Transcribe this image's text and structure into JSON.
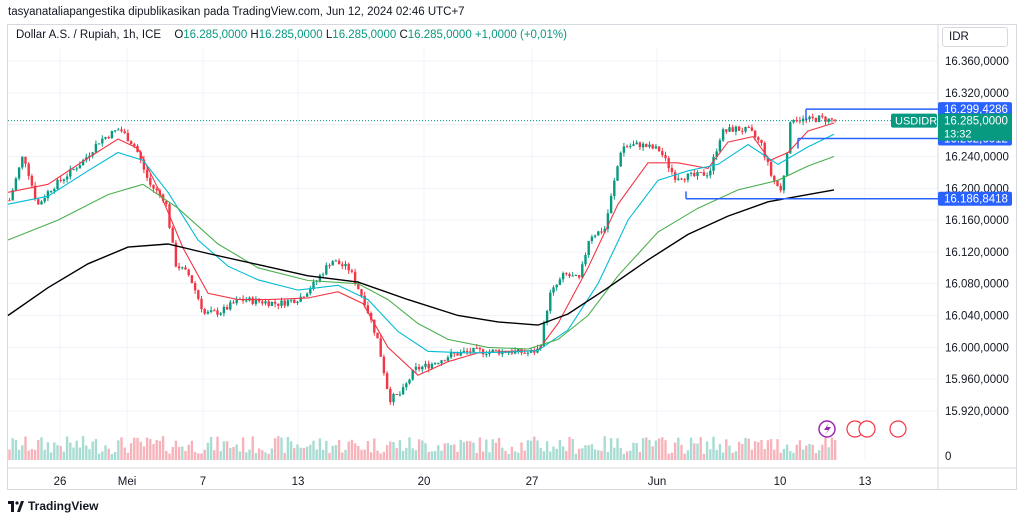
{
  "header": {
    "attribution": "tasyanataliapangestika dipublikasikan pada TradingView.com, Jun 12, 2024 02:46 UTC+7"
  },
  "legend": {
    "symbol": "Dollar A.S. / Rupiah, 1h, ICE",
    "open_label": "O",
    "open": "16.285,0000",
    "high_label": "H",
    "high": "16.285,0000",
    "low_label": "L",
    "low": "16.285,0000",
    "close_label": "C",
    "close": "16.285,0000",
    "change": "+1,0000 (+0,01%)"
  },
  "currency_button": "IDR",
  "footer": {
    "brand": "TradingView"
  },
  "chart_data": {
    "type": "candlestick",
    "y_axis_ticks": [
      "16.360,0000",
      "16.320,0000",
      "16.280,0000",
      "16.240,0000",
      "16.200,0000",
      "16.160,0000",
      "16.120,0000",
      "16.080,0000",
      "16.040,0000",
      "16.000,0000",
      "15.960,0000",
      "15.920,0000"
    ],
    "y_tick_values": [
      16360,
      16320,
      16280,
      16240,
      16200,
      16160,
      16120,
      16080,
      16040,
      16000,
      15960,
      15920
    ],
    "ylim": [
      15902,
      16384
    ],
    "x_axis_labels": [
      "26",
      "Mei",
      "7",
      "13",
      "20",
      "27",
      "Jun",
      "10",
      "13"
    ],
    "volume_axis_label": "0",
    "price_labels": [
      {
        "text": "16.299,4286",
        "value": 16299.4286,
        "color": "#2962ff"
      },
      {
        "text": "16.262,6012",
        "value": 16262.6012,
        "color": "#2962ff"
      },
      {
        "text": "16.186,8418",
        "value": 16186.8418,
        "color": "#2962ff"
      }
    ],
    "last_price": {
      "symbol": "USDIDR",
      "text": "16.285,0000",
      "countdown": "13:32",
      "value": 16285,
      "color": "#089981"
    },
    "colors": {
      "up": "#089981",
      "down": "#f23645",
      "ma_fast": "#f23645",
      "ma_mid": "#00bcd4",
      "ma_slow": "#4caf50",
      "ma_long": "#000000",
      "level": "#2962ff"
    },
    "price_path": [
      {
        "x": 0,
        "p": 16185
      },
      {
        "x": 14,
        "p": 16243
      },
      {
        "x": 28,
        "p": 16178
      },
      {
        "x": 40,
        "p": 16198
      },
      {
        "x": 56,
        "p": 16215
      },
      {
        "x": 74,
        "p": 16235
      },
      {
        "x": 90,
        "p": 16260
      },
      {
        "x": 110,
        "p": 16275
      },
      {
        "x": 126,
        "p": 16252
      },
      {
        "x": 140,
        "p": 16205
      },
      {
        "x": 156,
        "p": 16185
      },
      {
        "x": 166,
        "p": 16105
      },
      {
        "x": 180,
        "p": 16090
      },
      {
        "x": 195,
        "p": 16042
      },
      {
        "x": 212,
        "p": 16045
      },
      {
        "x": 230,
        "p": 16060
      },
      {
        "x": 250,
        "p": 16058
      },
      {
        "x": 270,
        "p": 16055
      },
      {
        "x": 290,
        "p": 16062
      },
      {
        "x": 305,
        "p": 16080
      },
      {
        "x": 322,
        "p": 16110
      },
      {
        "x": 340,
        "p": 16098
      },
      {
        "x": 355,
        "p": 16058
      },
      {
        "x": 368,
        "p": 16010
      },
      {
        "x": 380,
        "p": 15935
      },
      {
        "x": 392,
        "p": 15942
      },
      {
        "x": 405,
        "p": 15972
      },
      {
        "x": 420,
        "p": 15978
      },
      {
        "x": 440,
        "p": 15990
      },
      {
        "x": 460,
        "p": 15995
      },
      {
        "x": 480,
        "p": 15995
      },
      {
        "x": 500,
        "p": 15995
      },
      {
        "x": 520,
        "p": 15993
      },
      {
        "x": 530,
        "p": 15998
      },
      {
        "x": 540,
        "p": 16065
      },
      {
        "x": 555,
        "p": 16092
      },
      {
        "x": 570,
        "p": 16085
      },
      {
        "x": 580,
        "p": 16140
      },
      {
        "x": 595,
        "p": 16148
      },
      {
        "x": 612,
        "p": 16252
      },
      {
        "x": 630,
        "p": 16255
      },
      {
        "x": 650,
        "p": 16248
      },
      {
        "x": 665,
        "p": 16215
      },
      {
        "x": 685,
        "p": 16215
      },
      {
        "x": 700,
        "p": 16220
      },
      {
        "x": 712,
        "p": 16270
      },
      {
        "x": 725,
        "p": 16275
      },
      {
        "x": 740,
        "p": 16272
      },
      {
        "x": 752,
        "p": 16255
      },
      {
        "x": 762,
        "p": 16215
      },
      {
        "x": 772,
        "p": 16195
      },
      {
        "x": 782,
        "p": 16290
      },
      {
        "x": 795,
        "p": 16285
      },
      {
        "x": 810,
        "p": 16288
      },
      {
        "x": 826,
        "p": 16285
      }
    ],
    "moving_averages": {
      "fast": [
        [
          0,
          16195
        ],
        [
          40,
          16205
        ],
        [
          80,
          16238
        ],
        [
          110,
          16262
        ],
        [
          130,
          16250
        ],
        [
          150,
          16200
        ],
        [
          175,
          16125
        ],
        [
          200,
          16068
        ],
        [
          230,
          16060
        ],
        [
          260,
          16060
        ],
        [
          300,
          16062
        ],
        [
          330,
          16070
        ],
        [
          355,
          16055
        ],
        [
          380,
          16000
        ],
        [
          410,
          15965
        ],
        [
          440,
          15982
        ],
        [
          470,
          15993
        ],
        [
          500,
          15995
        ],
        [
          530,
          15996
        ],
        [
          550,
          16030
        ],
        [
          580,
          16100
        ],
        [
          610,
          16180
        ],
        [
          640,
          16232
        ],
        [
          670,
          16232
        ],
        [
          700,
          16225
        ],
        [
          720,
          16258
        ],
        [
          745,
          16265
        ],
        [
          762,
          16235
        ],
        [
          780,
          16245
        ],
        [
          800,
          16272
        ],
        [
          826,
          16282
        ]
      ],
      "mid": [
        [
          0,
          16180
        ],
        [
          40,
          16190
        ],
        [
          80,
          16222
        ],
        [
          110,
          16245
        ],
        [
          135,
          16235
        ],
        [
          160,
          16195
        ],
        [
          190,
          16135
        ],
        [
          220,
          16102
        ],
        [
          250,
          16085
        ],
        [
          290,
          16072
        ],
        [
          330,
          16078
        ],
        [
          360,
          16060
        ],
        [
          390,
          16020
        ],
        [
          420,
          15995
        ],
        [
          460,
          15993
        ],
        [
          500,
          15994
        ],
        [
          530,
          15996
        ],
        [
          560,
          16022
        ],
        [
          590,
          16080
        ],
        [
          620,
          16160
        ],
        [
          650,
          16210
        ],
        [
          680,
          16222
        ],
        [
          710,
          16230
        ],
        [
          740,
          16255
        ],
        [
          770,
          16230
        ],
        [
          800,
          16252
        ],
        [
          826,
          16268
        ]
      ],
      "slow": [
        [
          0,
          16135
        ],
        [
          50,
          16160
        ],
        [
          100,
          16192
        ],
        [
          135,
          16205
        ],
        [
          170,
          16175
        ],
        [
          210,
          16130
        ],
        [
          250,
          16100
        ],
        [
          300,
          16084
        ],
        [
          350,
          16080
        ],
        [
          380,
          16060
        ],
        [
          410,
          16030
        ],
        [
          440,
          16010
        ],
        [
          480,
          16000
        ],
        [
          520,
          15998
        ],
        [
          550,
          16010
        ],
        [
          580,
          16040
        ],
        [
          610,
          16090
        ],
        [
          650,
          16145
        ],
        [
          690,
          16175
        ],
        [
          730,
          16198
        ],
        [
          770,
          16210
        ],
        [
          800,
          16228
        ],
        [
          826,
          16240
        ]
      ],
      "long": [
        [
          0,
          16040
        ],
        [
          40,
          16075
        ],
        [
          80,
          16105
        ],
        [
          120,
          16126
        ],
        [
          160,
          16130
        ],
        [
          200,
          16118
        ],
        [
          250,
          16104
        ],
        [
          300,
          16090
        ],
        [
          350,
          16082
        ],
        [
          400,
          16060
        ],
        [
          450,
          16040
        ],
        [
          490,
          16032
        ],
        [
          530,
          16028
        ],
        [
          560,
          16042
        ],
        [
          600,
          16075
        ],
        [
          640,
          16110
        ],
        [
          680,
          16142
        ],
        [
          720,
          16165
        ],
        [
          760,
          16183
        ],
        [
          800,
          16192
        ],
        [
          826,
          16198
        ]
      ]
    }
  }
}
